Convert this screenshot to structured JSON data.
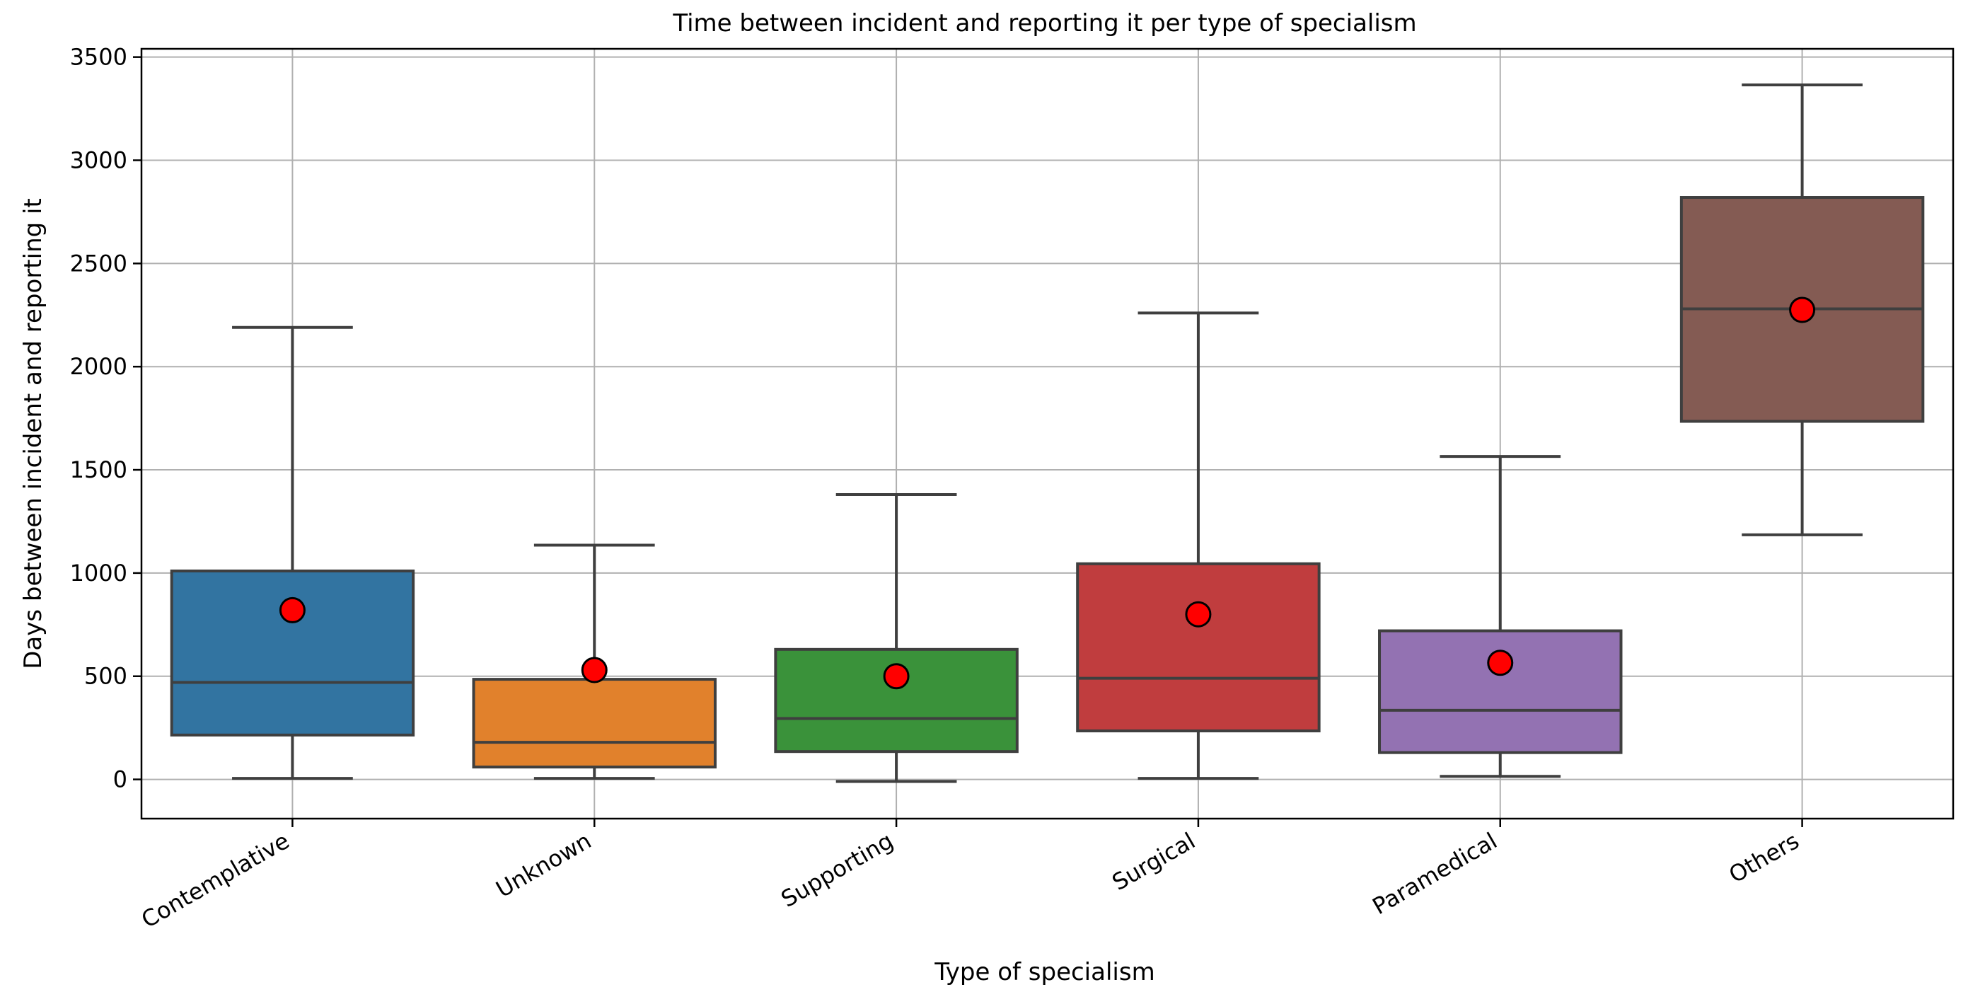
{
  "chart_data": {
    "type": "box",
    "title": "Time between incident and reporting it per type of specialism",
    "xlabel": "Type of specialism",
    "ylabel": "Days between incident and reporting it",
    "ylim": [
      -190,
      3540
    ],
    "yticks": [
      0,
      500,
      1000,
      1500,
      2000,
      2500,
      3000,
      3500
    ],
    "grid": true,
    "categories": [
      "Contemplative",
      "Unknown",
      "Supporting",
      "Surgical",
      "Paramedical",
      "Others"
    ],
    "boxes": [
      {
        "category": "Contemplative",
        "whisker_low": 5,
        "q1": 215,
        "median": 470,
        "q3": 1010,
        "whisker_high": 2190,
        "mean": 820,
        "color": "#3274a1"
      },
      {
        "category": "Unknown",
        "whisker_low": 5,
        "q1": 60,
        "median": 180,
        "q3": 485,
        "whisker_high": 1135,
        "mean": 530,
        "color": "#e1812c"
      },
      {
        "category": "Supporting",
        "whisker_low": -10,
        "q1": 135,
        "median": 295,
        "q3": 630,
        "whisker_high": 1380,
        "mean": 500,
        "color": "#3a923a"
      },
      {
        "category": "Surgical",
        "whisker_low": 5,
        "q1": 235,
        "median": 490,
        "q3": 1045,
        "whisker_high": 2260,
        "mean": 800,
        "color": "#c03d3e"
      },
      {
        "category": "Paramedical",
        "whisker_low": 15,
        "q1": 130,
        "median": 335,
        "q3": 720,
        "whisker_high": 1565,
        "mean": 565,
        "color": "#9372b2"
      },
      {
        "category": "Others",
        "whisker_low": 1185,
        "q1": 1735,
        "median": 2280,
        "q3": 2820,
        "whisker_high": 3365,
        "mean": 2275,
        "color": "#845b53"
      }
    ]
  }
}
